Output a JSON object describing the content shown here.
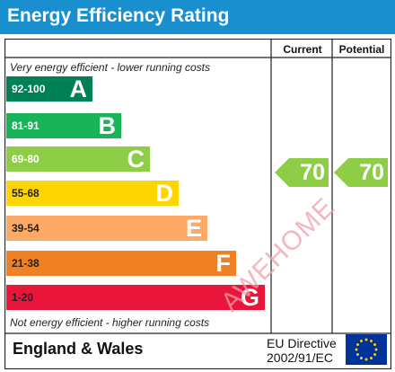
{
  "title": "Energy Efficiency Rating",
  "columns": {
    "current": "Current",
    "potential": "Potential"
  },
  "notes": {
    "top": "Very energy efficient - lower running costs",
    "bottom": "Not energy efficient - higher running costs"
  },
  "bands": [
    {
      "range": "92-100",
      "letter": "A",
      "color": "#008054",
      "range_color": "#ffffff"
    },
    {
      "range": "81-91",
      "letter": "B",
      "color": "#19b459",
      "range_color": "#ffffff"
    },
    {
      "range": "69-80",
      "letter": "C",
      "color": "#8dce46",
      "range_color": "#ffffff"
    },
    {
      "range": "55-68",
      "letter": "D",
      "color": "#ffd500",
      "range_color": "#222222"
    },
    {
      "range": "39-54",
      "letter": "E",
      "color": "#fcaa65",
      "range_color": "#222222"
    },
    {
      "range": "21-38",
      "letter": "F",
      "color": "#ef8023",
      "range_color": "#222222"
    },
    {
      "range": "1-20",
      "letter": "G",
      "color": "#e9153b",
      "range_color": "#222222"
    }
  ],
  "ratings": {
    "current": {
      "value": "70",
      "band": "C",
      "color": "#8dce46"
    },
    "potential": {
      "value": "70",
      "band": "C",
      "color": "#8dce46"
    }
  },
  "footer": {
    "region": "England & Wales",
    "directive_line1": "EU Directive",
    "directive_line2": "2002/91/EC",
    "flag_icon": "eu-flag-icon",
    "flag_color": "#003399",
    "star_color": "#ffcc00"
  },
  "watermark": "AWEHOME"
}
